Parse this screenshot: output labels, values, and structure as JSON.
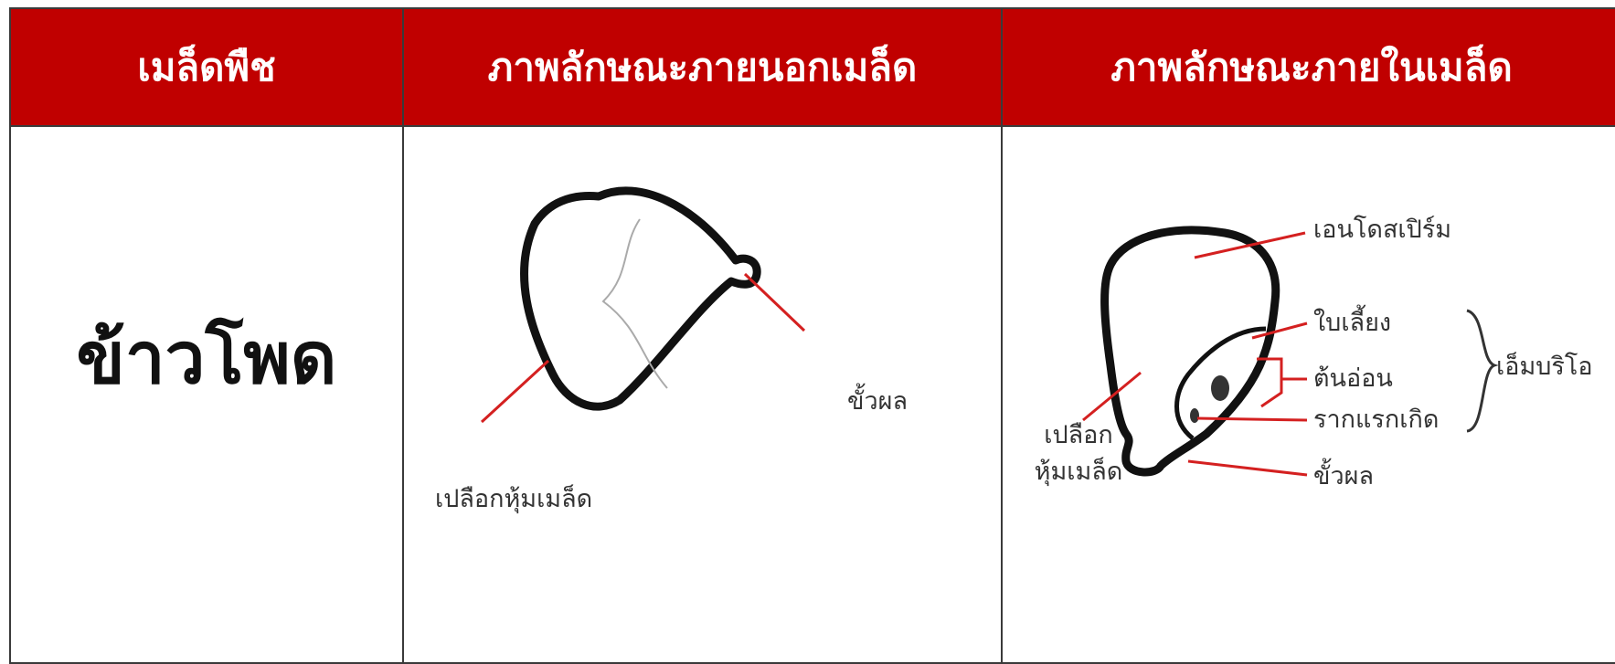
{
  "table": {
    "header": [
      "เมล็ดพืช",
      "ภาพลักษณะภายนอกเมล็ด",
      "ภาพลักษณะภายในเมล็ด"
    ],
    "rows": [
      {
        "seed": "ข้าวโพด",
        "outside_labels": [
          "ขั้วผล",
          "เปลือกหุ้มเมล็ด"
        ],
        "inside_labels": [
          "เอนโดสเปิร์ม",
          "ใบเลี้ยง",
          "ต้นอ่อน",
          "รากแรกเกิด",
          "เอ็มบริโอ",
          "เปลือก",
          "หุ้มเมล็ด",
          "ขั้วผล"
        ]
      }
    ]
  }
}
